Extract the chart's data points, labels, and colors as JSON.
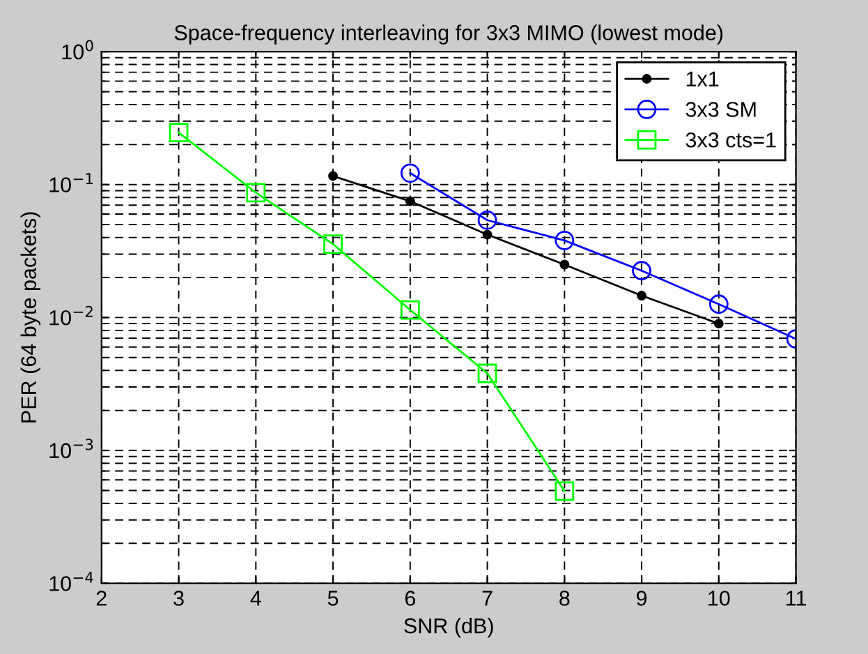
{
  "chart_data": {
    "type": "line",
    "title": "Space-frequency interleaving for 3x3 MIMO (lowest mode)",
    "xlabel": "SNR (dB)",
    "ylabel": "PER (64 byte packets)",
    "log": "y",
    "grid": true,
    "legend": "top right",
    "line_style": "solid",
    "xlim": [
      2,
      11
    ],
    "xticks": [
      2,
      3,
      4,
      5,
      6,
      7,
      8,
      9,
      10,
      11
    ],
    "ylim": [
      0.0001,
      1
    ],
    "yticks": [
      {
        "value": 0.0001,
        "label": "10$^{−4}$"
      },
      {
        "value": 0.001,
        "label": "10$^{−3}$"
      },
      {
        "value": 0.01,
        "label": "10$^{−2}$"
      },
      {
        "value": 0.1,
        "label": "10$^{−1}$"
      },
      {
        "value": 1,
        "label": "10$^{0}$"
      }
    ],
    "series": [
      {
        "name": "1x1",
        "color": "#000000",
        "marker": "circle",
        "x": [
          5,
          6,
          7,
          8,
          9,
          10
        ],
        "values": [
          0.116,
          0.075,
          0.042,
          0.025,
          0.0146,
          0.009
        ]
      },
      {
        "name": "3x3 SM",
        "color": "#0000ff",
        "marker": "circle",
        "x": [
          6,
          7,
          8,
          9,
          10,
          11
        ],
        "values": [
          0.122,
          0.054,
          0.038,
          0.0225,
          0.0126,
          0.0069
        ]
      },
      {
        "name": "3x3 cts=1",
        "color": "#00ff00",
        "marker": "square",
        "x": [
          3,
          4,
          5,
          6,
          7,
          8
        ],
        "values": [
          0.246,
          0.087,
          0.0357,
          0.0114,
          0.0038,
          0.000495
        ]
      }
    ]
  }
}
